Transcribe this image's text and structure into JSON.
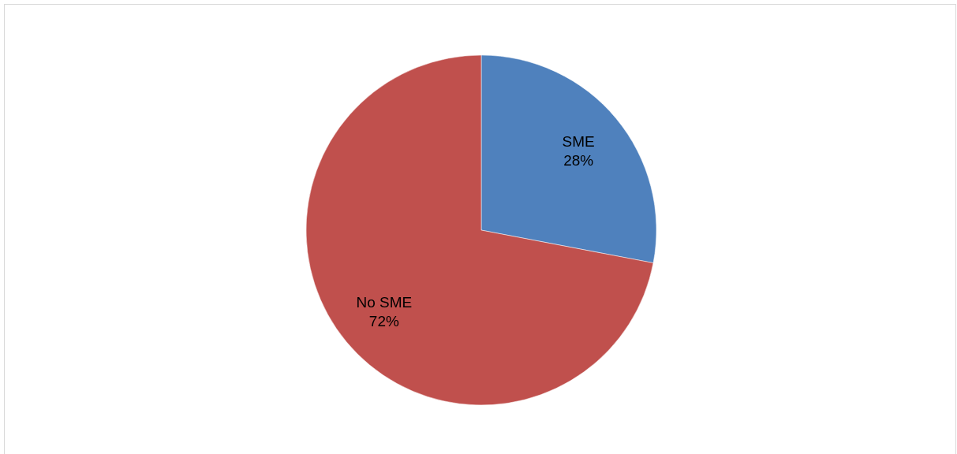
{
  "chart_data": {
    "type": "pie",
    "categories": [
      "SME",
      "No SME"
    ],
    "values": [
      28,
      72
    ],
    "colors": [
      "#4f81bd",
      "#c0504d"
    ],
    "value_labels": [
      "28%",
      "72%"
    ]
  }
}
